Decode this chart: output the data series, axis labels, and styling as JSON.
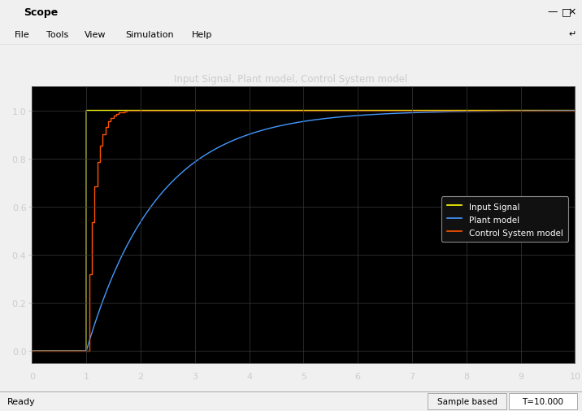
{
  "title": "Input Signal, Plant model, Control System model",
  "xlim": [
    0,
    10
  ],
  "ylim_low": -0.05,
  "ylim_high": 1.1,
  "xticks": [
    0,
    1,
    2,
    3,
    4,
    5,
    6,
    7,
    8,
    9,
    10
  ],
  "yticks": [
    0.0,
    0.2,
    0.4,
    0.6,
    0.8,
    1.0
  ],
  "grid_color": "#3a3a3a",
  "input_signal_color": "#ffff00",
  "plant_model_color": "#4499ff",
  "control_system_color": "#ff5500",
  "step_time": 1.0,
  "plant_tau": 1.3,
  "control_tau": 0.13,
  "control_sample_period": 0.05,
  "legend_labels": [
    "Input Signal",
    "Plant model",
    "Control System model"
  ],
  "title_color": "#cccccc",
  "tick_color": "#cccccc",
  "window_title": "Scope",
  "menu_items": [
    "File",
    "Tools",
    "View",
    "Simulation",
    "Help"
  ],
  "status_left": "Ready",
  "status_right": "T=10.000",
  "status_mid": "Sample based",
  "plot_bg": "#000000",
  "title_strip_bg": "#3c3c3c",
  "window_chrome_bg": "#f0f0f0",
  "toolbar_bg": "#e8e8e8",
  "statusbar_bg": "#f0f0f0",
  "axis_below_bg": "#1a1a1a"
}
